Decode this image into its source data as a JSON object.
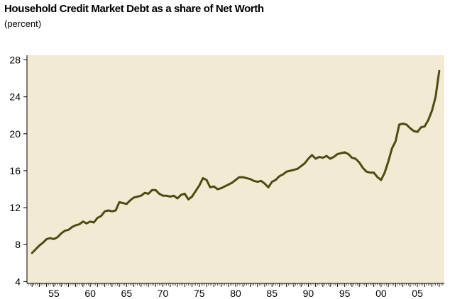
{
  "chart_data": {
    "type": "line",
    "title": "Household Credit Market Debt as a share of Net Worth",
    "subtitle": "(percent)",
    "xlabel": "",
    "ylabel": "",
    "xlim": [
      1951.3,
      2008.7
    ],
    "ylim": [
      3.8,
      28.5
    ],
    "y_ticks": [
      4,
      8,
      12,
      16,
      20,
      24,
      28
    ],
    "x_tick_labels": [
      {
        "year": 1955,
        "label": "55"
      },
      {
        "year": 1960,
        "label": "60"
      },
      {
        "year": 1965,
        "label": "65"
      },
      {
        "year": 1970,
        "label": "70"
      },
      {
        "year": 1975,
        "label": "75"
      },
      {
        "year": 1980,
        "label": "80"
      },
      {
        "year": 1985,
        "label": "85"
      },
      {
        "year": 1990,
        "label": "90"
      },
      {
        "year": 1995,
        "label": "95"
      },
      {
        "year": 2000,
        "label": "00"
      },
      {
        "year": 2005,
        "label": "05"
      }
    ],
    "plot_background": "#f3ead3",
    "line_color": "#4f4a14",
    "grid": false,
    "series": [
      {
        "values": [
          [
            1952.0,
            7.1
          ],
          [
            1952.5,
            7.5
          ],
          [
            1953.0,
            7.9
          ],
          [
            1953.5,
            8.2
          ],
          [
            1954.0,
            8.6
          ],
          [
            1954.5,
            8.7
          ],
          [
            1955.0,
            8.6
          ],
          [
            1955.5,
            8.8
          ],
          [
            1956.0,
            9.2
          ],
          [
            1956.5,
            9.5
          ],
          [
            1957.0,
            9.6
          ],
          [
            1957.5,
            9.9
          ],
          [
            1958.0,
            10.1
          ],
          [
            1958.5,
            10.2
          ],
          [
            1959.0,
            10.5
          ],
          [
            1959.5,
            10.3
          ],
          [
            1960.0,
            10.5
          ],
          [
            1960.5,
            10.4
          ],
          [
            1961.0,
            10.9
          ],
          [
            1961.5,
            11.1
          ],
          [
            1962.0,
            11.6
          ],
          [
            1962.5,
            11.7
          ],
          [
            1963.0,
            11.6
          ],
          [
            1963.5,
            11.7
          ],
          [
            1964.0,
            12.6
          ],
          [
            1964.5,
            12.5
          ],
          [
            1965.0,
            12.4
          ],
          [
            1965.5,
            12.8
          ],
          [
            1966.0,
            13.1
          ],
          [
            1966.5,
            13.2
          ],
          [
            1967.0,
            13.3
          ],
          [
            1967.5,
            13.6
          ],
          [
            1968.0,
            13.5
          ],
          [
            1968.5,
            13.9
          ],
          [
            1969.0,
            13.9
          ],
          [
            1969.5,
            13.5
          ],
          [
            1970.0,
            13.3
          ],
          [
            1970.5,
            13.3
          ],
          [
            1971.0,
            13.2
          ],
          [
            1971.5,
            13.3
          ],
          [
            1972.0,
            13.0
          ],
          [
            1972.5,
            13.4
          ],
          [
            1973.0,
            13.5
          ],
          [
            1973.5,
            12.9
          ],
          [
            1974.0,
            13.2
          ],
          [
            1974.5,
            13.8
          ],
          [
            1975.0,
            14.4
          ],
          [
            1975.5,
            15.2
          ],
          [
            1976.0,
            15.0
          ],
          [
            1976.5,
            14.2
          ],
          [
            1977.0,
            14.3
          ],
          [
            1977.5,
            14.0
          ],
          [
            1978.0,
            14.1
          ],
          [
            1978.5,
            14.3
          ],
          [
            1979.0,
            14.5
          ],
          [
            1979.5,
            14.7
          ],
          [
            1980.0,
            15.0
          ],
          [
            1980.5,
            15.3
          ],
          [
            1981.0,
            15.3
          ],
          [
            1981.5,
            15.2
          ],
          [
            1982.0,
            15.1
          ],
          [
            1982.5,
            14.9
          ],
          [
            1983.0,
            14.8
          ],
          [
            1983.5,
            14.9
          ],
          [
            1984.0,
            14.6
          ],
          [
            1984.5,
            14.2
          ],
          [
            1985.0,
            14.8
          ],
          [
            1985.5,
            15.0
          ],
          [
            1986.0,
            15.4
          ],
          [
            1986.5,
            15.6
          ],
          [
            1987.0,
            15.9
          ],
          [
            1987.5,
            16.0
          ],
          [
            1988.0,
            16.1
          ],
          [
            1988.5,
            16.2
          ],
          [
            1989.0,
            16.5
          ],
          [
            1989.5,
            16.8
          ],
          [
            1990.0,
            17.3
          ],
          [
            1990.5,
            17.7
          ],
          [
            1991.0,
            17.3
          ],
          [
            1991.5,
            17.5
          ],
          [
            1992.0,
            17.4
          ],
          [
            1992.5,
            17.6
          ],
          [
            1993.0,
            17.3
          ],
          [
            1993.5,
            17.5
          ],
          [
            1994.0,
            17.8
          ],
          [
            1994.5,
            17.9
          ],
          [
            1995.0,
            18.0
          ],
          [
            1995.5,
            17.8
          ],
          [
            1996.0,
            17.4
          ],
          [
            1996.5,
            17.3
          ],
          [
            1997.0,
            16.9
          ],
          [
            1997.5,
            16.3
          ],
          [
            1998.0,
            15.9
          ],
          [
            1998.5,
            15.8
          ],
          [
            1999.0,
            15.8
          ],
          [
            1999.5,
            15.3
          ],
          [
            2000.0,
            15.0
          ],
          [
            2000.5,
            15.8
          ],
          [
            2001.0,
            17.0
          ],
          [
            2001.5,
            18.4
          ],
          [
            2002.0,
            19.2
          ],
          [
            2002.5,
            21.0
          ],
          [
            2003.0,
            21.1
          ],
          [
            2003.5,
            21.0
          ],
          [
            2004.0,
            20.6
          ],
          [
            2004.5,
            20.3
          ],
          [
            2005.0,
            20.2
          ],
          [
            2005.5,
            20.7
          ],
          [
            2006.0,
            20.8
          ],
          [
            2006.5,
            21.5
          ],
          [
            2007.0,
            22.5
          ],
          [
            2007.5,
            24.0
          ],
          [
            2008.0,
            26.8
          ]
        ]
      }
    ]
  }
}
